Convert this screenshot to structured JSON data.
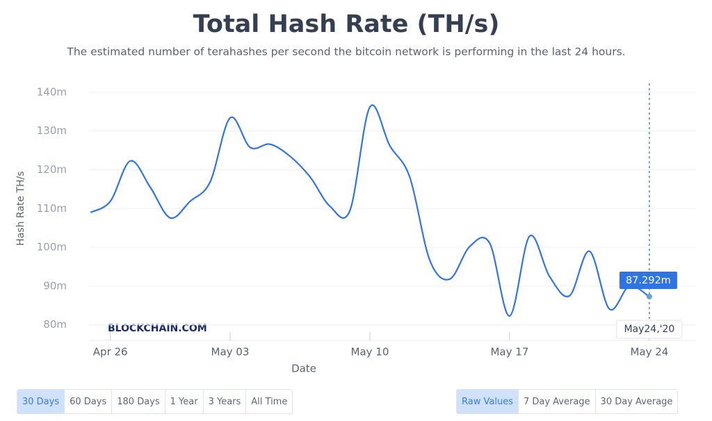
{
  "chart_data": {
    "type": "line",
    "title": "Total Hash Rate (TH/s)",
    "subtitle": "The estimated number of terahashes per second the bitcoin network is performing in the last 24 hours.",
    "x_label": "Date",
    "y_label": "Hash Rate TH/s",
    "watermark": "BLOCKCHAIN.COM",
    "categories": [
      null,
      "Apr 26",
      null,
      null,
      null,
      null,
      null,
      "May 03",
      null,
      null,
      null,
      null,
      null,
      null,
      "May 10",
      null,
      null,
      null,
      null,
      null,
      null,
      "May 17",
      null,
      null,
      null,
      null,
      null,
      null,
      "May 24"
    ],
    "series": [
      {
        "name": "Hash Rate",
        "color": "#2f74e0",
        "values": [
          109.0,
          111.9,
          122.3,
          115.5,
          107.6,
          111.9,
          116.9,
          133.4,
          125.8,
          126.6,
          123.5,
          118.2,
          110.6,
          109.5,
          136.2,
          126.2,
          118.1,
          96.7,
          91.8,
          100.2,
          101.1,
          82.3,
          102.9,
          92.5,
          87.5,
          99.0,
          84.1,
          90.0,
          87.292
        ],
        "value_labels": [
          null,
          null,
          null,
          null,
          null,
          null,
          null,
          null,
          null,
          null,
          null,
          null,
          null,
          null,
          null,
          null,
          null,
          null,
          null,
          null,
          null,
          null,
          null,
          null,
          null,
          null,
          null,
          null,
          "87.292m"
        ]
      }
    ],
    "tooltip_date": "May24,'20",
    "ylim": [
      76,
      142.3
    ],
    "yticks": [
      {
        "value": 80,
        "label": "80m"
      },
      {
        "value": 90,
        "label": "90m"
      },
      {
        "value": 100,
        "label": "100m"
      },
      {
        "value": 110,
        "label": "110m"
      },
      {
        "value": 120,
        "label": "120m"
      },
      {
        "value": 130,
        "label": "130m"
      },
      {
        "value": 140,
        "label": "140m"
      }
    ],
    "grid": true
  },
  "controls": {
    "range_buttons": [
      "30 Days",
      "60 Days",
      "180 Days",
      "1 Year",
      "3 Years",
      "All Time"
    ],
    "average_buttons": [
      "Raw Values",
      "7 Day Average",
      "30 Day Average"
    ]
  }
}
